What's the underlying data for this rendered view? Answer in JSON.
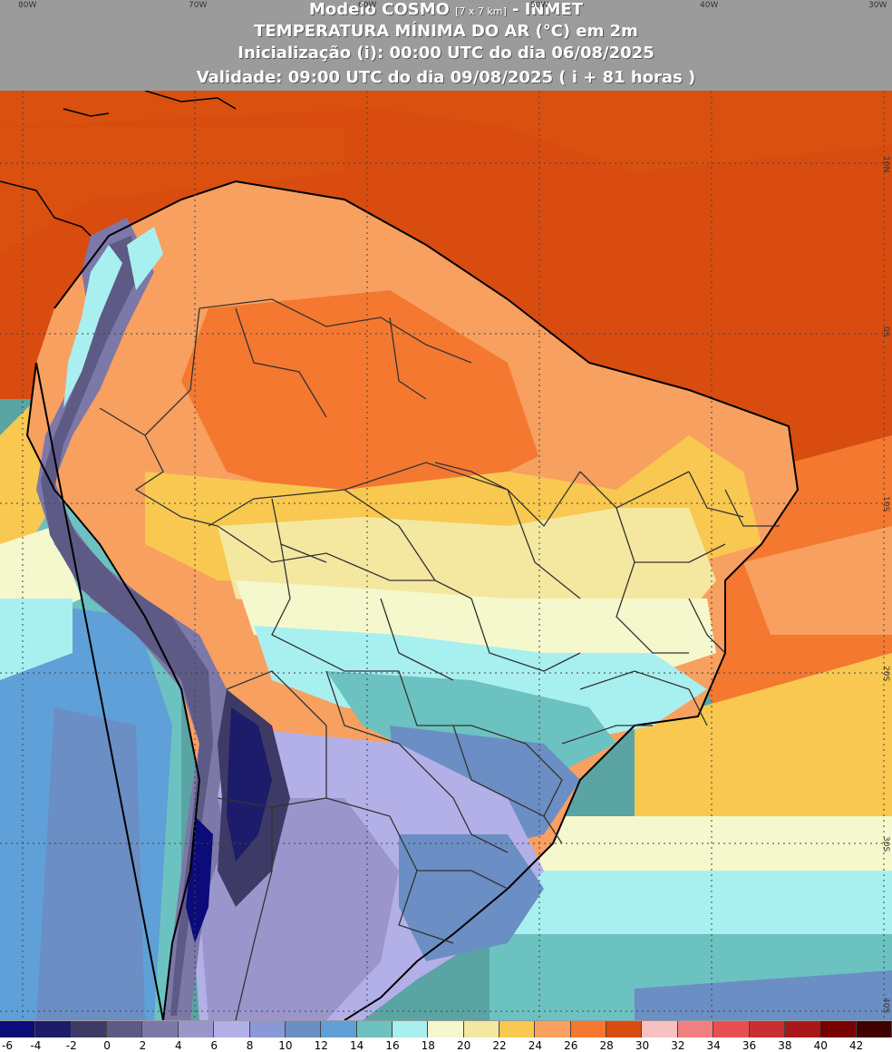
{
  "header": {
    "line1_a": "Modelo COSMO ",
    "line1_small": "[7 x 7 km]",
    "line1_b": " - INMET",
    "line2": "TEMPERATURA MÍNIMA DO AR (°C) em 2m",
    "line3": "Inicialização (i): 00:00 UTC do dia 06/08/2025",
    "line4": "Validade: 09:00 UTC do dia 09/08/2025 ( i + 81 horas )"
  },
  "longitude_labels": [
    "80W",
    "70W",
    "60W",
    "50W",
    "40W",
    "30W"
  ],
  "latitude_labels": [
    "10N",
    "0S",
    "10S",
    "20S",
    "30S",
    "40S"
  ],
  "colorbar": {
    "tick_labels": [
      "-6",
      "-4",
      "-2",
      "0",
      "2",
      "4",
      "6",
      "8",
      "10",
      "12",
      "14",
      "16",
      "18",
      "20",
      "22",
      "24",
      "26",
      "28",
      "30",
      "32",
      "34",
      "36",
      "38",
      "40",
      "42"
    ],
    "colors": [
      "#0b0b7a",
      "#1c1c6b",
      "#3d3a66",
      "#5d5a86",
      "#7c78a8",
      "#9a96cc",
      "#b3b0e8",
      "#8a98d8",
      "#6b8ec4",
      "#5fa0d8",
      "#6cc2c0",
      "#a8f0f0",
      "#f4f8cc",
      "#f4e8a0",
      "#f8c850",
      "#f8a060",
      "#f47830",
      "#d84c10",
      "#f8c0c0",
      "#f08080",
      "#e85050",
      "#c83030",
      "#a81818",
      "#780000",
      "#400000"
    ]
  }
}
